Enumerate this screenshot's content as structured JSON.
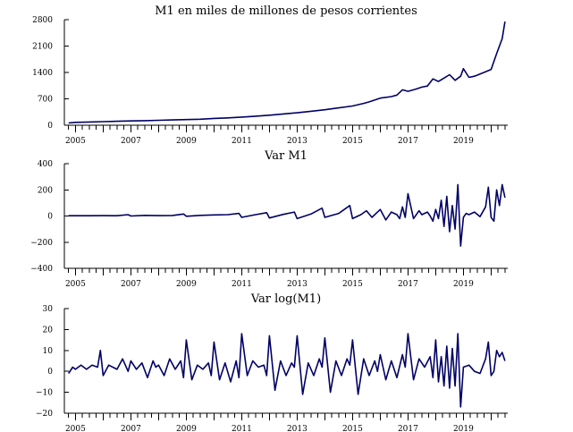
{
  "colors": {
    "series": "#000066",
    "axis": "#000000"
  },
  "chart_data": [
    {
      "type": "line",
      "title": "M1 en miles de millones de pesos corrientes",
      "xlabel": "",
      "ylabel": "",
      "xlim": [
        2004.6,
        2020.6
      ],
      "ylim": [
        0,
        2800
      ],
      "yticks": [
        0,
        700,
        1400,
        2100,
        2800
      ],
      "ytick_labels": [
        "0",
        "700",
        "1400",
        "2100",
        "2800"
      ],
      "xticks": [
        2005,
        2007,
        2009,
        2011,
        2013,
        2015,
        2017,
        2019
      ],
      "xtick_labels": [
        "2005",
        "2007",
        "2009",
        "2011",
        "2013",
        "2015",
        "2017",
        "2019"
      ],
      "grid": false,
      "series": [
        {
          "x": [
            2004.75,
            2005.0,
            2005.5,
            2006.0,
            2006.5,
            2007.0,
            2007.5,
            2008.0,
            2008.5,
            2009.0,
            2009.5,
            2010.0,
            2010.5,
            2011.0,
            2011.5,
            2012.0,
            2012.5,
            2013.0,
            2013.5,
            2014.0,
            2014.5,
            2015.0,
            2015.4,
            2015.6,
            2016.0,
            2016.4,
            2016.6,
            2016.8,
            2017.0,
            2017.3,
            2017.5,
            2017.7,
            2017.9,
            2018.1,
            2018.3,
            2018.5,
            2018.7,
            2018.9,
            2019.0,
            2019.2,
            2019.4,
            2019.6,
            2019.8,
            2020.0,
            2020.2,
            2020.4,
            2020.5
          ],
          "y": [
            60,
            75,
            85,
            95,
            105,
            115,
            120,
            130,
            140,
            150,
            160,
            180,
            195,
            215,
            240,
            265,
            300,
            330,
            370,
            410,
            460,
            510,
            580,
            620,
            720,
            760,
            800,
            940,
            900,
            960,
            1010,
            1040,
            1230,
            1160,
            1250,
            1340,
            1190,
            1300,
            1500,
            1270,
            1300,
            1360,
            1420,
            1480,
            1900,
            2300,
            2750
          ]
        }
      ]
    },
    {
      "type": "line",
      "title": "Var M1",
      "xlabel": "",
      "ylabel": "",
      "xlim": [
        2004.6,
        2020.6
      ],
      "ylim": [
        -400,
        400
      ],
      "yticks": [
        -400,
        -200,
        0,
        200,
        400
      ],
      "ytick_labels": [
        "−400",
        "−200",
        "0",
        "200",
        "400"
      ],
      "xticks": [
        2005,
        2007,
        2009,
        2011,
        2013,
        2015,
        2017,
        2019
      ],
      "xtick_labels": [
        "2005",
        "2007",
        "2009",
        "2011",
        "2013",
        "2015",
        "2017",
        "2019"
      ],
      "grid": false,
      "series": [
        {
          "x": [
            2004.75,
            2005.0,
            2005.5,
            2006.0,
            2006.5,
            2006.9,
            2007.0,
            2007.5,
            2008.0,
            2008.5,
            2008.9,
            2009.0,
            2009.5,
            2010.0,
            2010.5,
            2010.9,
            2011.0,
            2011.5,
            2011.9,
            2012.0,
            2012.5,
            2012.9,
            2013.0,
            2013.5,
            2013.9,
            2014.0,
            2014.5,
            2014.9,
            2015.0,
            2015.3,
            2015.5,
            2015.7,
            2015.9,
            2016.0,
            2016.2,
            2016.4,
            2016.6,
            2016.7,
            2016.8,
            2016.9,
            2017.0,
            2017.2,
            2017.4,
            2017.5,
            2017.7,
            2017.8,
            2017.9,
            2018.0,
            2018.1,
            2018.2,
            2018.3,
            2018.4,
            2018.5,
            2018.6,
            2018.7,
            2018.8,
            2018.9,
            2019.0,
            2019.1,
            2019.2,
            2019.4,
            2019.6,
            2019.8,
            2019.9,
            2020.0,
            2020.1,
            2020.2,
            2020.3,
            2020.4,
            2020.5
          ],
          "y": [
            2,
            2,
            2,
            3,
            2,
            10,
            0,
            5,
            3,
            4,
            15,
            -2,
            5,
            8,
            10,
            20,
            -10,
            10,
            25,
            -15,
            12,
            30,
            -20,
            15,
            60,
            -10,
            20,
            80,
            -20,
            10,
            40,
            -10,
            30,
            50,
            -30,
            30,
            10,
            -20,
            70,
            -10,
            170,
            -20,
            40,
            10,
            30,
            0,
            -40,
            50,
            -20,
            120,
            -80,
            150,
            -120,
            80,
            -100,
            240,
            -230,
            -10,
            20,
            10,
            30,
            -5,
            70,
            220,
            -10,
            -40,
            200,
            80,
            240,
            140
          ]
        }
      ]
    },
    {
      "type": "line",
      "title": "Var log(M1)",
      "xlabel": "",
      "ylabel": "",
      "xlim": [
        2004.6,
        2020.6
      ],
      "ylim": [
        -20,
        30
      ],
      "yticks": [
        -20,
        -10,
        0,
        10,
        20,
        30
      ],
      "ytick_labels": [
        "−20",
        "−10",
        "0",
        "10",
        "20",
        "30"
      ],
      "xticks": [
        2005,
        2007,
        2009,
        2011,
        2013,
        2015,
        2017,
        2019
      ],
      "xtick_labels": [
        "2005",
        "2007",
        "2009",
        "2011",
        "2013",
        "2015",
        "2017",
        "2019"
      ],
      "grid": false,
      "series": [
        {
          "x": [
            2004.75,
            2004.9,
            2005.0,
            2005.2,
            2005.4,
            2005.6,
            2005.8,
            2005.9,
            2006.0,
            2006.2,
            2006.5,
            2006.7,
            2006.9,
            2007.0,
            2007.2,
            2007.4,
            2007.6,
            2007.8,
            2007.9,
            2008.0,
            2008.2,
            2008.4,
            2008.6,
            2008.8,
            2008.9,
            2009.0,
            2009.2,
            2009.4,
            2009.6,
            2009.8,
            2009.9,
            2010.0,
            2010.2,
            2010.4,
            2010.6,
            2010.8,
            2010.9,
            2011.0,
            2011.2,
            2011.4,
            2011.6,
            2011.8,
            2011.9,
            2012.0,
            2012.2,
            2012.4,
            2012.6,
            2012.8,
            2012.9,
            2013.0,
            2013.2,
            2013.4,
            2013.6,
            2013.8,
            2013.9,
            2014.0,
            2014.2,
            2014.4,
            2014.6,
            2014.8,
            2014.9,
            2015.0,
            2015.2,
            2015.4,
            2015.6,
            2015.8,
            2015.9,
            2016.0,
            2016.2,
            2016.4,
            2016.6,
            2016.8,
            2016.9,
            2017.0,
            2017.2,
            2017.4,
            2017.6,
            2017.8,
            2017.9,
            2018.0,
            2018.1,
            2018.2,
            2018.3,
            2018.4,
            2018.5,
            2018.6,
            2018.7,
            2018.8,
            2018.9,
            2019.0,
            2019.2,
            2019.4,
            2019.6,
            2019.8,
            2019.9,
            2020.0,
            2020.1,
            2020.2,
            2020.3,
            2020.4,
            2020.5
          ],
          "y": [
            -1,
            2,
            1,
            3,
            1,
            3,
            2,
            10,
            -2,
            3,
            1,
            6,
            0,
            5,
            1,
            4,
            -3,
            5,
            2,
            3,
            -2,
            6,
            1,
            5,
            -3,
            15,
            -4,
            3,
            1,
            4,
            -2,
            14,
            -4,
            4,
            -5,
            5,
            -3,
            18,
            -2,
            5,
            2,
            3,
            -2,
            17,
            -9,
            5,
            -2,
            4,
            2,
            17,
            -11,
            4,
            -2,
            6,
            2,
            16,
            -10,
            5,
            -2,
            6,
            3,
            15,
            -11,
            6,
            -2,
            5,
            0,
            8,
            -4,
            5,
            -3,
            8,
            2,
            18,
            -4,
            6,
            2,
            7,
            -3,
            15,
            -5,
            7,
            -7,
            12,
            -8,
            11,
            -7,
            18,
            -17,
            2,
            3,
            0,
            -1,
            6,
            14,
            -2,
            0,
            10,
            7,
            9,
            5
          ]
        }
      ]
    }
  ]
}
